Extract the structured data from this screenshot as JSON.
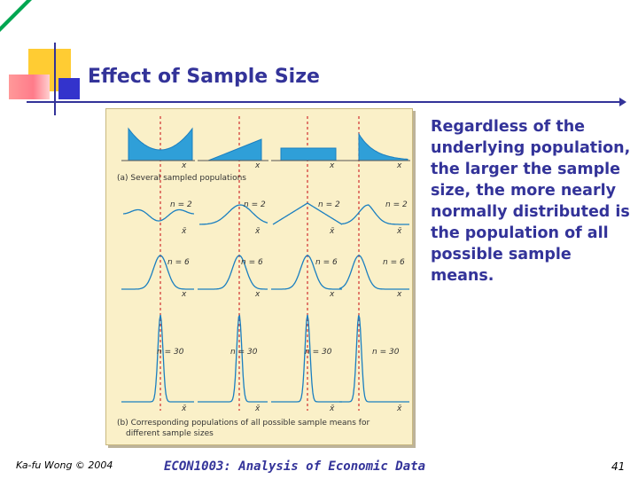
{
  "slide": {
    "title": "Effect of Sample Size",
    "body_text": "Regardless of the underlying population, the larger the sample size, the more nearly normally distributed is the population of all possible sample means.",
    "footer_left": "Ka-fu Wong © 2004",
    "footer_center": "ECON1003: Analysis of Economic Data",
    "page_number": "41"
  },
  "figure": {
    "caption_a": "(a) Several sampled populations",
    "caption_b_line1": "(b) Corresponding populations of all possible sample means for",
    "caption_b_line2": "different sample sizes",
    "axis_x": "x",
    "axis_xbar": "x̄",
    "n_labels": {
      "n2": "n = 2",
      "n6": "n = 6",
      "n30": "n = 30"
    },
    "colors": {
      "fill": "#2f9fd8",
      "line": "#1a7fc0",
      "dashed": "#d03030",
      "background": "#faf0c8"
    }
  }
}
